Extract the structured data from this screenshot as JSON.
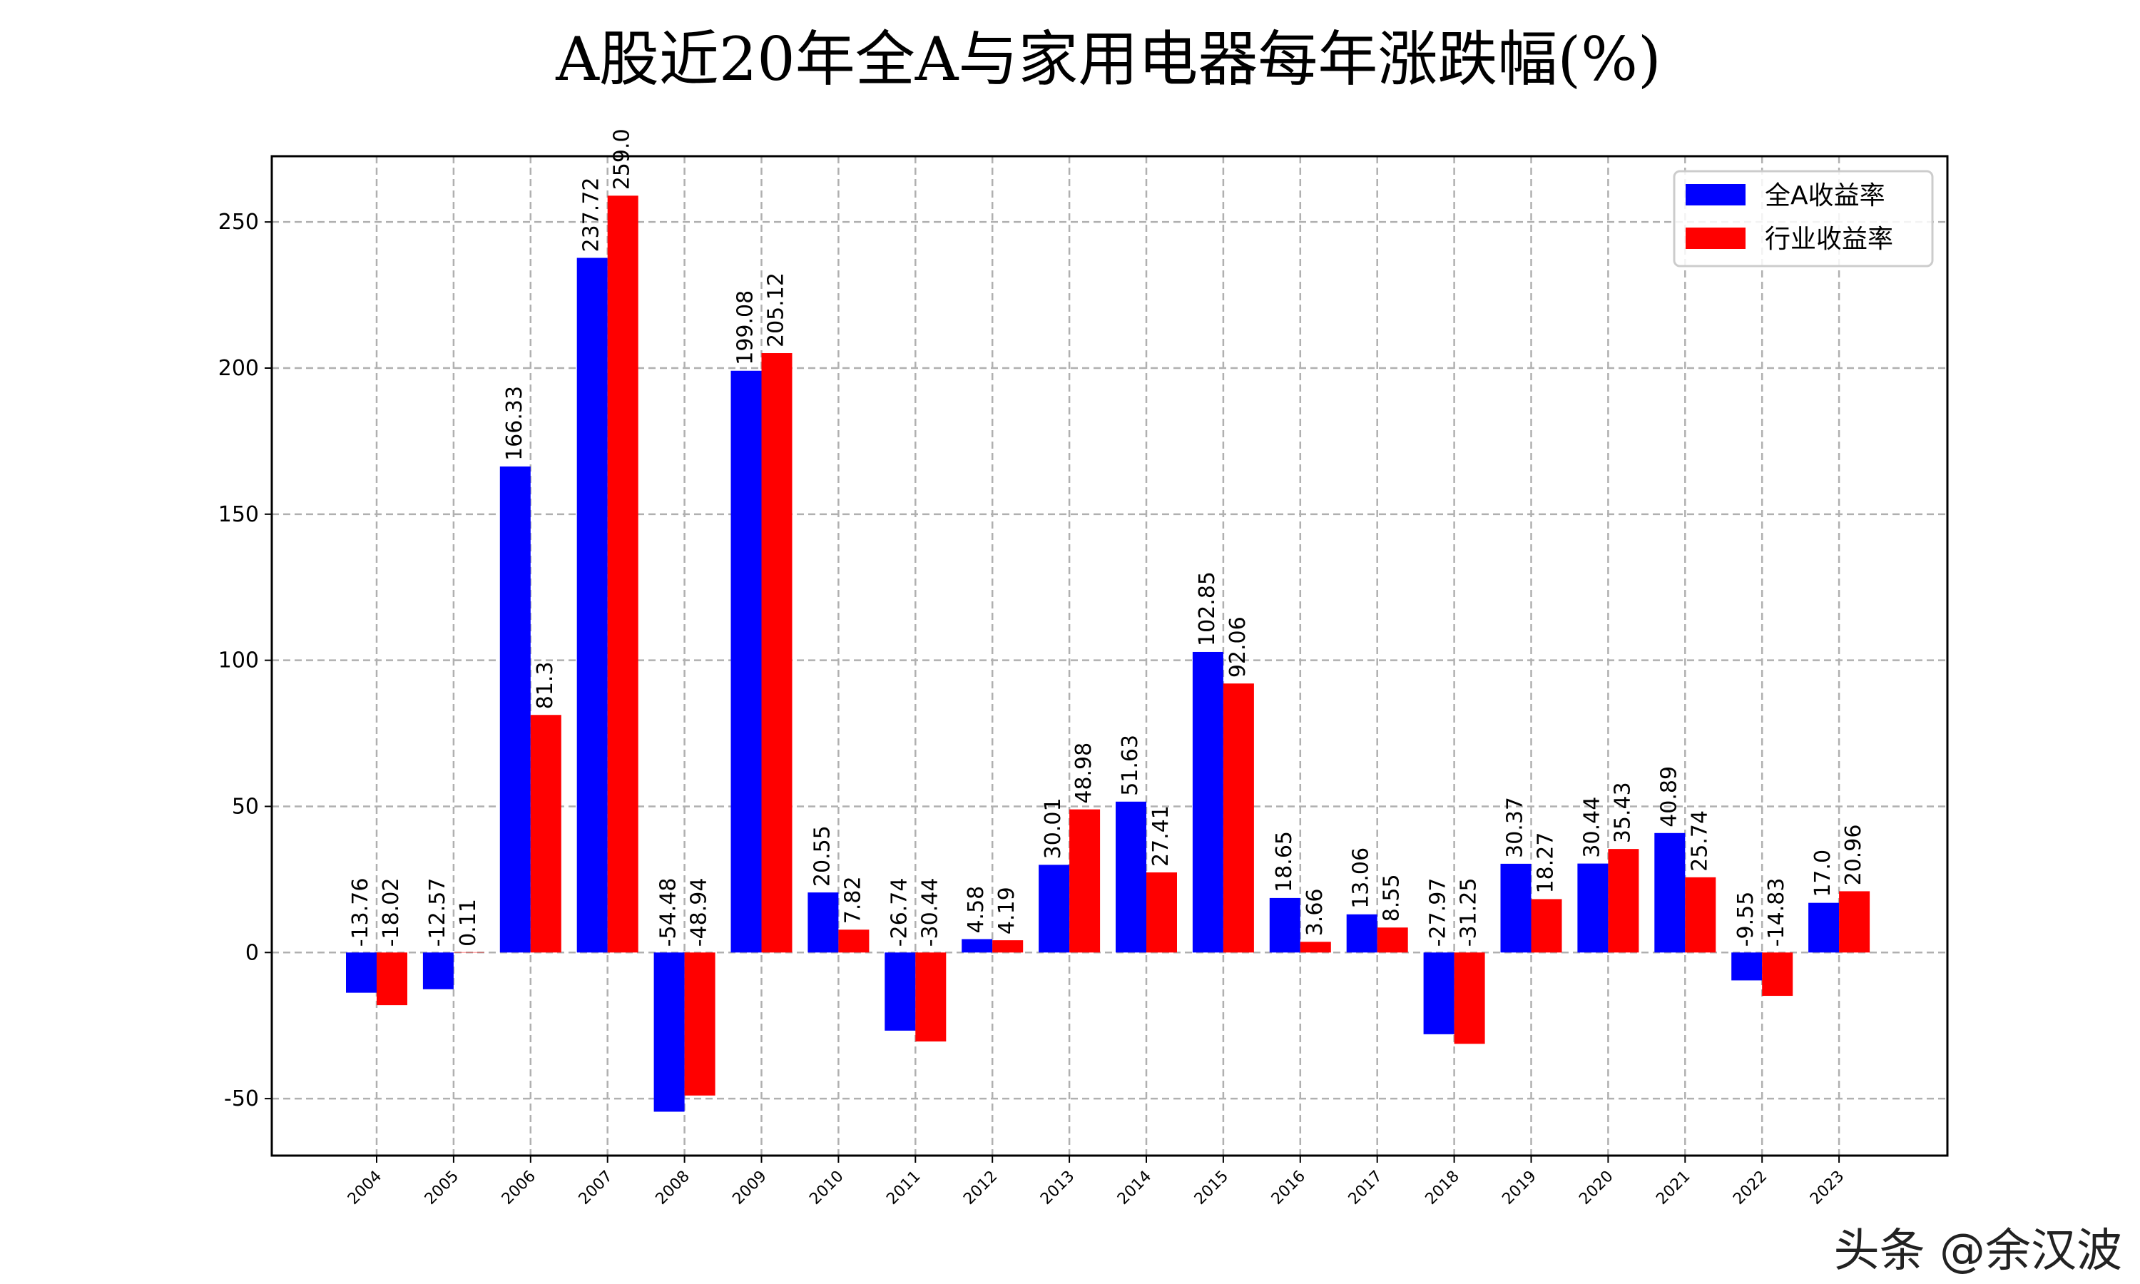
{
  "chart_data": {
    "type": "bar",
    "title": "A股近20年全A与家用电器每年涨跌幅(%)",
    "xlabel": "",
    "ylabel": "",
    "categories": [
      "2004",
      "2005",
      "2006",
      "2007",
      "2008",
      "2009",
      "2010",
      "2011",
      "2012",
      "2013",
      "2014",
      "2015",
      "2016",
      "2017",
      "2018",
      "2019",
      "2020",
      "2021",
      "2022",
      "2023"
    ],
    "series": [
      {
        "name": "全A收益率",
        "color": "#0000ff",
        "values": [
          -13.76,
          -12.57,
          166.33,
          237.72,
          -54.48,
          199.08,
          20.55,
          -26.74,
          4.58,
          30.01,
          51.63,
          102.85,
          18.65,
          13.06,
          -27.97,
          30.37,
          30.44,
          40.89,
          -9.55,
          17.0
        ]
      },
      {
        "name": "行业收益率",
        "color": "#ff0000",
        "values": [
          -18.02,
          0.11,
          81.3,
          259.0,
          -48.94,
          205.12,
          7.82,
          -30.44,
          4.19,
          48.98,
          27.41,
          92.06,
          3.66,
          8.55,
          -31.25,
          18.27,
          35.43,
          25.74,
          -14.83,
          20.96
        ]
      }
    ],
    "yticks": [
      -50,
      0,
      50,
      100,
      150,
      200,
      250
    ],
    "ylim": [
      -69.5,
      272.5
    ],
    "grid": true,
    "legend_position": "top-right"
  },
  "watermark": "头条 @余汉波"
}
